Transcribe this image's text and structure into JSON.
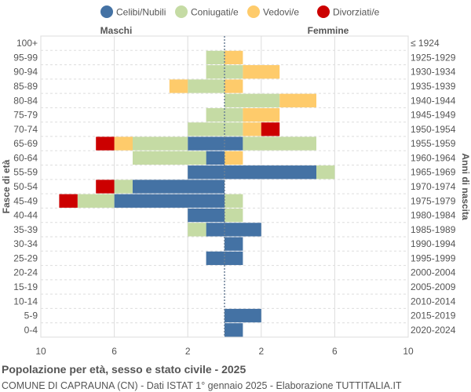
{
  "chart_data": {
    "type": "bar",
    "orientation": "horizontal-pyramid",
    "title": "Popolazione per età, sesso e stato civile - 2025",
    "subtitle": "COMUNE DI CAPRAUNA (CN) - Dati ISTAT 1° gennaio 2025 - Elaborazione TUTTITALIA.IT",
    "left_header": "Maschi",
    "right_header": "Femmine",
    "ylabel_left": "Fasce di età",
    "ylabel_right": "Anni di nascita",
    "xlim": [
      -10,
      10
    ],
    "xticks": [
      "10",
      "6",
      "2",
      "2",
      "6",
      "10"
    ],
    "xtick_values": [
      -10,
      -6,
      -2,
      2,
      6,
      10
    ],
    "grid": true,
    "legend_position": "top",
    "categories": [
      "100+",
      "95-99",
      "90-94",
      "85-89",
      "80-84",
      "75-79",
      "70-74",
      "65-69",
      "60-64",
      "55-59",
      "50-54",
      "45-49",
      "40-44",
      "35-39",
      "30-34",
      "25-29",
      "20-24",
      "15-19",
      "10-14",
      "5-9",
      "0-4"
    ],
    "birth_years": [
      "≤ 1924",
      "1925-1929",
      "1930-1934",
      "1935-1939",
      "1940-1944",
      "1945-1949",
      "1950-1954",
      "1955-1959",
      "1960-1964",
      "1965-1969",
      "1970-1974",
      "1975-1979",
      "1980-1984",
      "1985-1989",
      "1990-1994",
      "1995-1999",
      "2000-2004",
      "2005-2009",
      "2010-2014",
      "2015-2019",
      "2020-2024"
    ],
    "series": [
      {
        "name": "Celibi/Nubili",
        "color": "#4472a4",
        "male": [
          0,
          0,
          0,
          0,
          0,
          0,
          0,
          2,
          1,
          2,
          5,
          6,
          2,
          1,
          0,
          1,
          0,
          0,
          0,
          0,
          0
        ],
        "female": [
          0,
          0,
          0,
          0,
          0,
          0,
          0,
          1,
          0,
          5,
          0,
          0,
          0,
          2,
          1,
          1,
          0,
          0,
          0,
          2,
          1
        ]
      },
      {
        "name": "Coniugati/e",
        "color": "#c5dba4",
        "male": [
          0,
          1,
          1,
          2,
          0,
          1,
          2,
          3,
          4,
          0,
          1,
          2,
          0,
          1,
          0,
          0,
          0,
          0,
          0,
          0,
          0
        ],
        "female": [
          0,
          0,
          1,
          0,
          3,
          1,
          1,
          4,
          0,
          1,
          0,
          1,
          1,
          0,
          0,
          0,
          0,
          0,
          0,
          0,
          0
        ]
      },
      {
        "name": "Vedovi/e",
        "color": "#fecb6b",
        "male": [
          0,
          0,
          0,
          1,
          0,
          0,
          0,
          1,
          0,
          0,
          0,
          0,
          0,
          0,
          0,
          0,
          0,
          0,
          0,
          0,
          0
        ],
        "female": [
          0,
          1,
          2,
          1,
          2,
          2,
          1,
          0,
          1,
          0,
          0,
          0,
          0,
          0,
          0,
          0,
          0,
          0,
          0,
          0,
          0
        ]
      },
      {
        "name": "Divorziati/e",
        "color": "#cc0000",
        "male": [
          0,
          0,
          0,
          0,
          0,
          0,
          0,
          1,
          0,
          0,
          1,
          1,
          0,
          0,
          0,
          0,
          0,
          0,
          0,
          0,
          0
        ],
        "female": [
          0,
          0,
          0,
          0,
          0,
          0,
          1,
          0,
          0,
          0,
          0,
          0,
          0,
          0,
          0,
          0,
          0,
          0,
          0,
          0,
          0
        ]
      }
    ]
  }
}
